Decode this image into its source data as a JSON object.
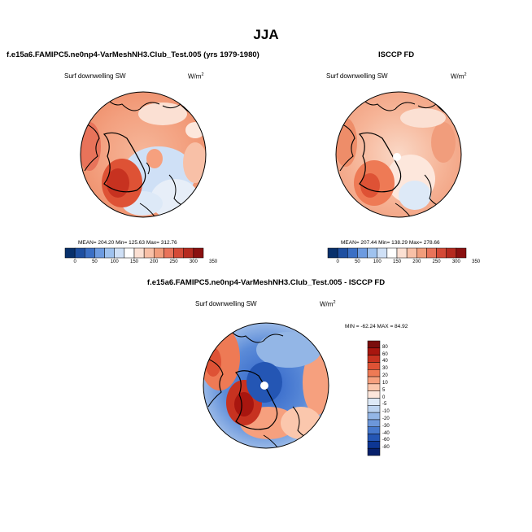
{
  "figure": {
    "title": "JJA"
  },
  "panels": [
    {
      "title": "f.e15a6.FAMIPC5.ne0np4-VarMeshNH3.Club_Test.005 (yrs 1979-1980)",
      "field_label": "Surf downwelling SW",
      "units_base": "W/m",
      "units_exp": "2",
      "stats": "MEAN= 204.20  Min= 125.63  Max= 312.76"
    },
    {
      "title": "ISCCP FD",
      "field_label": "Surf downwelling SW",
      "units_base": "W/m",
      "units_exp": "2",
      "stats": "MEAN= 207.44  Min= 138.29  Max= 278.66"
    },
    {
      "title": "f.e15a6.FAMIPC5.ne0np4-VarMeshNH3.Club_Test.005 - ISCCP FD",
      "field_label": "Surf downwelling SW",
      "units_base": "W/m",
      "units_exp": "2",
      "stats": "MIN = -62.24 MAX =  84.92"
    }
  ],
  "chart_data": [
    {
      "type": "heatmap",
      "projection": "north-polar-stereographic",
      "title": "f.e15a6.FAMIPC5.ne0np4-VarMeshNH3.Club_Test.005 (yrs 1979-1980)",
      "variable": "Surf downwelling SW",
      "units": "W/m2",
      "mean": 204.2,
      "min": 125.63,
      "max": 312.76,
      "colorbar": {
        "orientation": "horizontal",
        "levels": [
          0,
          50,
          100,
          150,
          200,
          250,
          300,
          350
        ],
        "tick_labels": [
          "0",
          "50",
          "100",
          "150",
          "200",
          "250",
          "300",
          "350"
        ],
        "colors": [
          "#08306b",
          "#1e4fa0",
          "#3b6fc4",
          "#6d9be0",
          "#9fc2ee",
          "#cfe0f6",
          "#ffffff",
          "#fbe0d3",
          "#f8c0a7",
          "#f19d7c",
          "#e8735a",
          "#d44a37",
          "#b52a1f",
          "#8a1010"
        ]
      }
    },
    {
      "type": "heatmap",
      "projection": "north-polar-stereographic",
      "title": "ISCCP FD",
      "variable": "Surf downwelling SW",
      "units": "W/m2",
      "mean": 207.44,
      "min": 138.29,
      "max": 278.66,
      "colorbar": {
        "orientation": "horizontal",
        "levels": [
          0,
          50,
          100,
          150,
          200,
          250,
          300,
          350
        ],
        "tick_labels": [
          "0",
          "50",
          "100",
          "150",
          "200",
          "250",
          "300",
          "350"
        ],
        "colors": [
          "#08306b",
          "#1e4fa0",
          "#3b6fc4",
          "#6d9be0",
          "#9fc2ee",
          "#cfe0f6",
          "#ffffff",
          "#fbe0d3",
          "#f8c0a7",
          "#f19d7c",
          "#e8735a",
          "#d44a37",
          "#b52a1f",
          "#8a1010"
        ]
      }
    },
    {
      "type": "heatmap",
      "projection": "north-polar-stereographic",
      "title": "f.e15a6.FAMIPC5.ne0np4-VarMeshNH3.Club_Test.005 - ISCCP FD",
      "variable": "Surf downwelling SW",
      "units": "W/m2",
      "min": -62.24,
      "max": 84.92,
      "colorbar": {
        "orientation": "vertical",
        "levels": [
          80,
          60,
          40,
          30,
          20,
          10,
          5,
          0,
          -5,
          -10,
          -20,
          -30,
          -40,
          -60,
          -80
        ],
        "tick_labels": [
          "80",
          "60",
          "40",
          "30",
          "20",
          "10",
          "5",
          "0",
          "-5",
          "-10",
          "-20",
          "-30",
          "-40",
          "-60",
          "-80"
        ],
        "colors": [
          "#7a0d0d",
          "#a8160f",
          "#c73220",
          "#de5235",
          "#ee7a55",
          "#f6a07e",
          "#fbc7ad",
          "#fde7dc",
          "#dde9f7",
          "#bcd3f0",
          "#93b6e6",
          "#6c97da",
          "#4678cc",
          "#2456b4",
          "#0d3694",
          "#07206b"
        ]
      }
    }
  ]
}
